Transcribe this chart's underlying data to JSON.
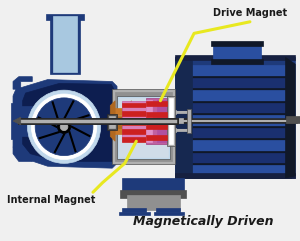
{
  "bg_color": "#f0f0f0",
  "pump_blue": "#1e3a7a",
  "pump_blue2": "#243f8a",
  "pump_blue_light": "#2a4fa0",
  "motor_blue": "#1e3a8c",
  "light_blue": "#a8c8e0",
  "light_blue2": "#c0d8ec",
  "orange": "#b06820",
  "orange2": "#c87828",
  "gray": "#808080",
  "gray_light": "#b0b0b0",
  "gray_dark": "#505050",
  "gray_med": "#909090",
  "red": "#cc2020",
  "magenta": "#c060a0",
  "magenta_light": "#d880b8",
  "yellow_line": "#e8e820",
  "white": "#ffffff",
  "black": "#000000",
  "dark_gray_line": "#282828",
  "label_color": "#1a1a1a",
  "drive_magnet_label": "Drive Magnet",
  "internal_magnet_label": "Internal Magnet",
  "bottom_label": "Magnetically Driven",
  "figsize": [
    3.0,
    2.41
  ],
  "dpi": 100
}
